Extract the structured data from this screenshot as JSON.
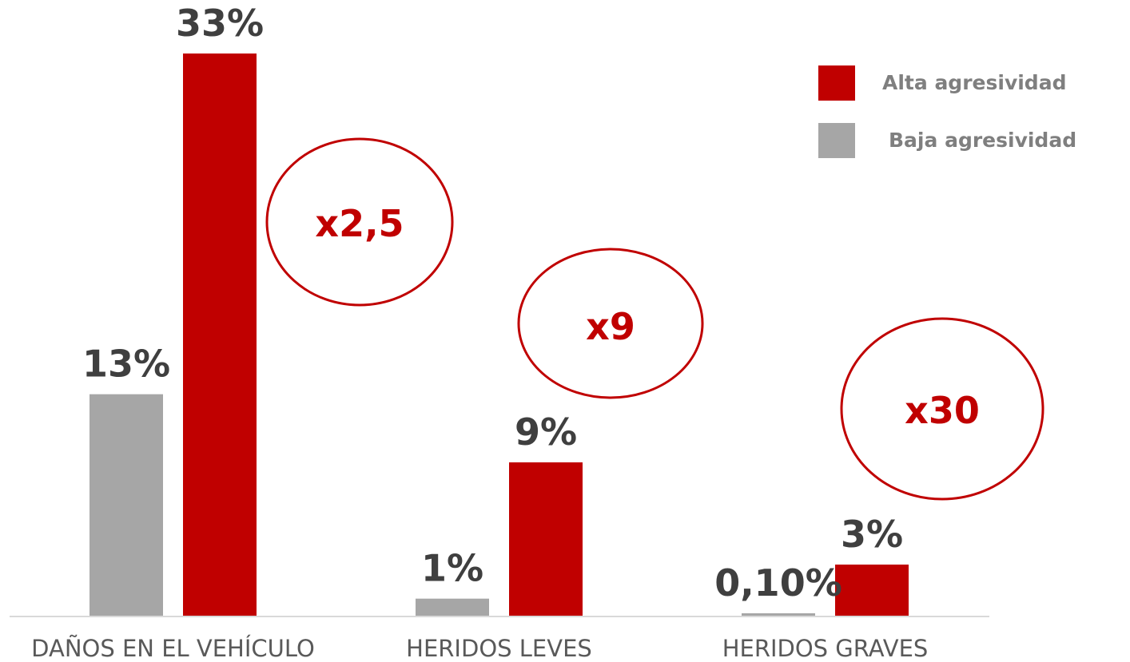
{
  "chart_data": {
    "type": "bar",
    "categories": [
      "DAÑOS EN EL VEHÍCULO",
      "HERIDOS LEVES",
      "HERIDOS GRAVES"
    ],
    "series": [
      {
        "name": "Baja agresividad",
        "color": "#a6a6a6",
        "values": [
          13,
          1,
          0.1
        ],
        "labels": [
          "13%",
          "1%",
          "0,10%"
        ]
      },
      {
        "name": "Alta agresividad",
        "color": "#c00000",
        "values": [
          33,
          9,
          3
        ],
        "labels": [
          "33%",
          "9%",
          "3%"
        ]
      }
    ],
    "multipliers": [
      "x2,5",
      "x9",
      "x30"
    ],
    "ylim": [
      0,
      35
    ],
    "legend_order": [
      "Alta agresividad",
      "Baja agresividad"
    ],
    "legend_position": "top-right",
    "grid": false,
    "title": "",
    "xlabel": "",
    "ylabel": ""
  }
}
